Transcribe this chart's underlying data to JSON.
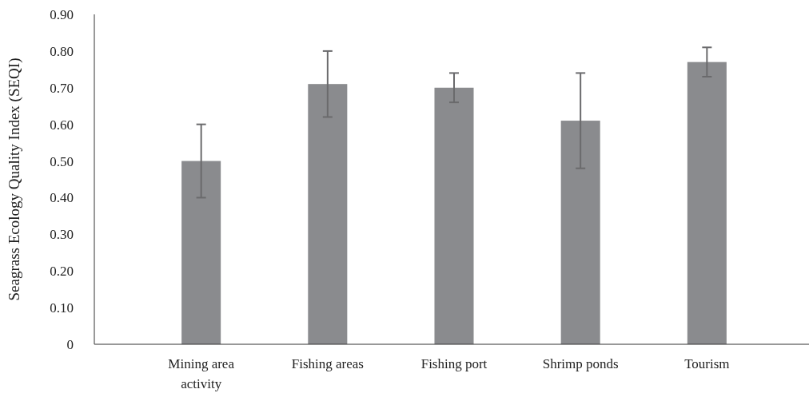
{
  "chart_data": {
    "type": "bar",
    "ylabel": "Seagrass Ecology Quality Index (SEQI)",
    "categories": [
      "Mining area activity",
      "Fishing areas",
      "Fishing port",
      "Shrimp ponds",
      "Tourism"
    ],
    "values": [
      0.5,
      0.71,
      0.7,
      0.61,
      0.77
    ],
    "errors": [
      0.1,
      0.09,
      0.04,
      0.13,
      0.04
    ],
    "color": "#8a8b8e",
    "ylim": [
      0,
      0.9
    ],
    "yticks": [
      {
        "value": 0,
        "label": "0"
      },
      {
        "value": 0.1,
        "label": "0.10"
      },
      {
        "value": 0.2,
        "label": "0.20"
      },
      {
        "value": 0.3,
        "label": "0.30"
      },
      {
        "value": 0.4,
        "label": "0.40"
      },
      {
        "value": 0.5,
        "label": "0.50"
      },
      {
        "value": 0.6,
        "label": "0.60"
      },
      {
        "value": 0.7,
        "label": "0.70"
      },
      {
        "value": 0.8,
        "label": "0.80"
      },
      {
        "value": 0.9,
        "label": "0.90"
      }
    ],
    "grid": false
  }
}
